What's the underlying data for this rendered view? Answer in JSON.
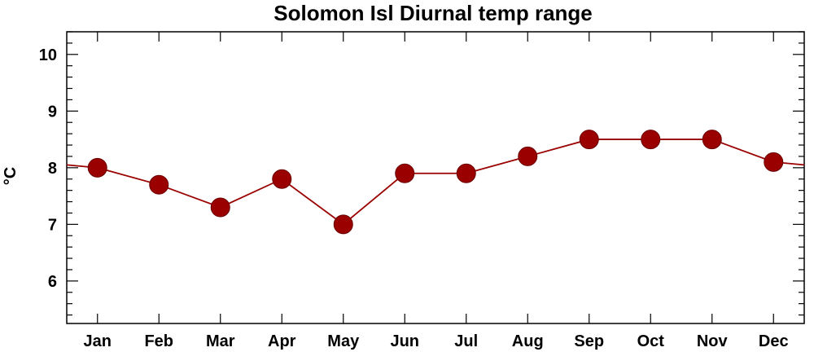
{
  "chart_data": {
    "type": "line",
    "title": "Solomon Isl Diurnal temp range",
    "xlabel": "",
    "ylabel": "°C",
    "categories": [
      "Jan",
      "Feb",
      "Mar",
      "Apr",
      "May",
      "Jun",
      "Jul",
      "Aug",
      "Sep",
      "Oct",
      "Nov",
      "Dec"
    ],
    "series": [
      {
        "values": [
          8.0,
          7.7,
          7.3,
          7.8,
          7.0,
          7.9,
          7.9,
          8.2,
          8.5,
          8.5,
          8.5,
          8.1
        ]
      }
    ],
    "wrap_edges": {
      "left": 8.05,
      "right": 8.05
    },
    "ylim": [
      5.25,
      10.4
    ],
    "yticks": [
      6,
      7,
      8,
      9,
      10
    ],
    "grid": false,
    "colors": {
      "series": "#9b0000",
      "axes": "#000000"
    }
  }
}
